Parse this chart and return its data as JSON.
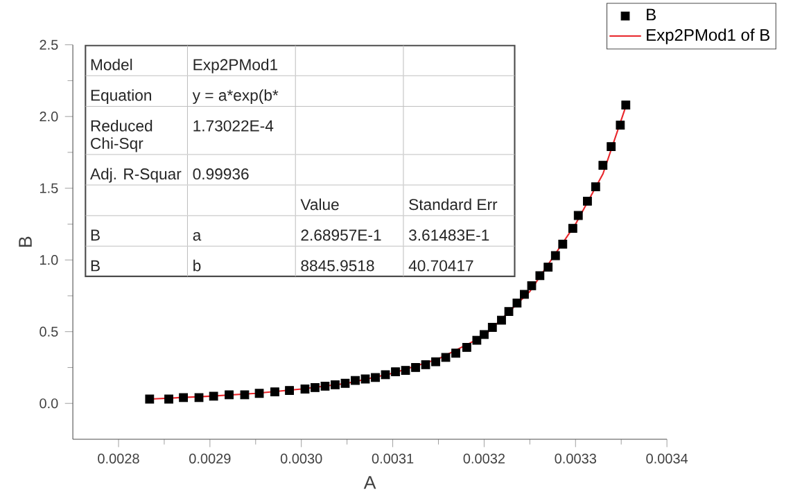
{
  "chart_data": {
    "type": "scatter",
    "xlabel": "A",
    "ylabel": "B",
    "xlim": [
      0.00275,
      0.0034
    ],
    "ylim": [
      -0.25,
      2.5
    ],
    "xticks": [
      0.0028,
      0.0029,
      {
        "value": 0.003,
        "label": "0.0030"
      },
      0.0031,
      0.0032,
      0.0033,
      0.0034
    ],
    "yticks": [
      {
        "value": 0,
        "label": "0.0"
      },
      {
        "value": 0.5,
        "label": "0.5"
      },
      {
        "value": 1,
        "label": "1.0"
      },
      {
        "value": 1.5,
        "label": "1.5"
      },
      {
        "value": 2,
        "label": "2.0"
      },
      {
        "value": 2.5,
        "label": "2.5"
      }
    ],
    "grid": false,
    "legend": "top right",
    "marker": "square",
    "series": [
      {
        "name": "B",
        "color": "#000000",
        "x": [
          0.002834,
          0.002855,
          0.002871,
          0.002888,
          0.002904,
          0.002921,
          0.002938,
          0.002954,
          0.002971,
          0.002987,
          0.003004,
          0.003015,
          0.003026,
          0.003037,
          0.003048,
          0.003059,
          0.00307,
          0.003081,
          0.003092,
          0.003103,
          0.003114,
          0.003125,
          0.003136,
          0.003147,
          0.003158,
          0.003169,
          0.003181,
          0.003192,
          0.0032,
          0.003209,
          0.003219,
          0.003227,
          0.003236,
          0.003244,
          0.003252,
          0.003261,
          0.00327,
          0.003278,
          0.003286,
          0.003297,
          0.003303,
          0.003313,
          0.003322,
          0.00333,
          0.003339,
          0.003349,
          0.003355
        ],
        "values": [
          0.03,
          0.03,
          0.04,
          0.04,
          0.05,
          0.06,
          0.06,
          0.07,
          0.08,
          0.09,
          0.1,
          0.11,
          0.12,
          0.13,
          0.14,
          0.16,
          0.17,
          0.18,
          0.2,
          0.22,
          0.23,
          0.25,
          0.27,
          0.29,
          0.32,
          0.35,
          0.39,
          0.44,
          0.48,
          0.53,
          0.58,
          0.64,
          0.7,
          0.76,
          0.82,
          0.89,
          0.95,
          1.03,
          1.11,
          1.22,
          1.31,
          1.41,
          1.51,
          1.66,
          1.79,
          1.94,
          2.08
        ]
      },
      {
        "name": "Exp2PMod1 of B",
        "type": "line",
        "color": "#e8262b",
        "marker": "none",
        "line_style": "solid",
        "x": [
          0.002834,
          0.0029,
          0.00295,
          0.003,
          0.00305,
          0.0031,
          0.00315,
          0.0032,
          0.00325,
          0.0033,
          0.00333,
          0.003355
        ],
        "values": [
          0.03,
          0.05,
          0.07,
          0.1,
          0.14,
          0.21,
          0.31,
          0.47,
          0.78,
          1.25,
          1.6,
          2.07
        ]
      }
    ],
    "annotations": [
      "Model",
      "Exp2PMod1",
      "Equation",
      "y = a*exp(b*",
      "Reduced Chi-Sqr",
      "1.73022E-4",
      "Adj. R-Squar",
      "0.99936",
      "Value",
      "Standard Err",
      "B",
      "a",
      "2.68957E-1",
      "3.61483E-1",
      "B",
      "b",
      "8845.9518",
      "40.70417"
    ]
  }
}
